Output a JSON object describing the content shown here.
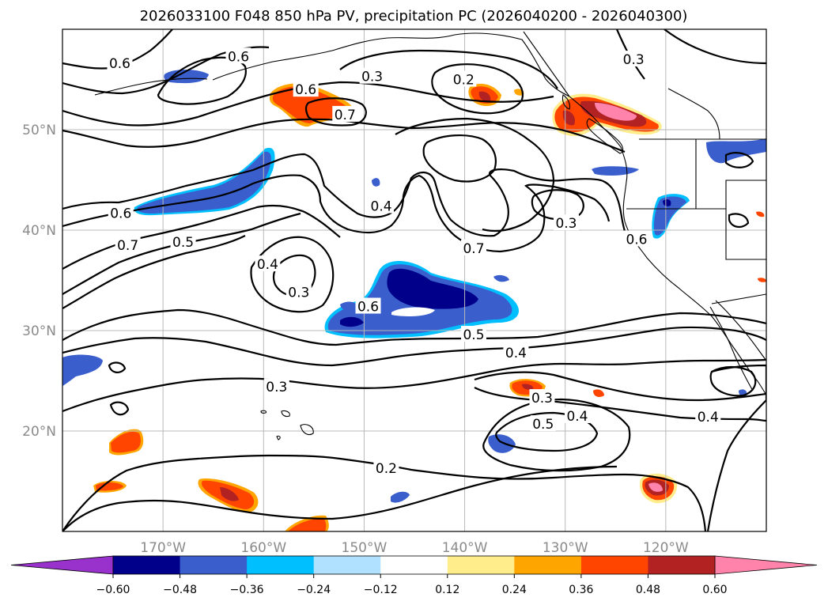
{
  "chart_data": {
    "type": "contour-map",
    "title": "2026033100 F048 850 hPa PV, precipitation PC (2026040200 - 2026040300)",
    "projection": "PlateCarree",
    "lon_range": [
      -180,
      -110
    ],
    "lat_range": [
      10,
      60
    ],
    "gridlines": true,
    "x_ticks": [
      {
        "lon": -170,
        "label": "170°W"
      },
      {
        "lon": -160,
        "label": "160°W"
      },
      {
        "lon": -150,
        "label": "150°W"
      },
      {
        "lon": -140,
        "label": "140°W"
      },
      {
        "lon": -130,
        "label": "130°W"
      },
      {
        "lon": -120,
        "label": "120°W"
      }
    ],
    "y_ticks": [
      {
        "lat": 20,
        "label": "20°N"
      },
      {
        "lat": 30,
        "label": "30°N"
      },
      {
        "lat": 40,
        "label": "40°N"
      },
      {
        "lat": 50,
        "label": "50°N"
      }
    ],
    "pv_contour_levels": [
      0.2,
      0.3,
      0.4,
      0.5,
      0.6,
      0.7
    ],
    "contour_labels": [
      {
        "text": "0.6",
        "lon": -174.2,
        "lat": 41.7
      },
      {
        "text": "0.7",
        "lon": -173.5,
        "lat": 38.5
      },
      {
        "text": "0.5",
        "lon": -168.0,
        "lat": 38.8
      },
      {
        "text": "0.4",
        "lon": -159.6,
        "lat": 36.6
      },
      {
        "text": "0.3",
        "lon": -156.5,
        "lat": 33.8
      },
      {
        "text": "0.4",
        "lon": -148.3,
        "lat": 42.4
      },
      {
        "text": "0.7",
        "lon": -139.1,
        "lat": 38.2
      },
      {
        "text": "0.3",
        "lon": -129.9,
        "lat": 40.7
      },
      {
        "text": "0.6",
        "lon": -149.6,
        "lat": 32.4
      },
      {
        "text": "0.5",
        "lon": -139.1,
        "lat": 29.6
      },
      {
        "text": "0.4",
        "lon": -134.9,
        "lat": 27.8
      },
      {
        "text": "0.3",
        "lon": -158.7,
        "lat": 24.4
      },
      {
        "text": "0.3",
        "lon": -132.3,
        "lat": 23.3
      },
      {
        "text": "0.4",
        "lon": -128.8,
        "lat": 21.5
      },
      {
        "text": "0.5",
        "lon": -132.2,
        "lat": 20.7
      },
      {
        "text": "0.4",
        "lon": -115.8,
        "lat": 21.4
      },
      {
        "text": "0.2",
        "lon": -147.8,
        "lat": 16.3
      },
      {
        "text": "0.6",
        "lon": -162.5,
        "lat": 57.3
      },
      {
        "text": "0.6",
        "lon": -155.8,
        "lat": 54.0
      },
      {
        "text": "0.7",
        "lon": -151.9,
        "lat": 51.5
      },
      {
        "text": "0.3",
        "lon": -149.2,
        "lat": 55.3
      },
      {
        "text": "0.2",
        "lon": -140.1,
        "lat": 55.0
      },
      {
        "text": "0.3",
        "lon": -123.2,
        "lat": 57.0
      },
      {
        "text": "0.6",
        "lon": -174.3,
        "lat": 56.6
      },
      {
        "text": "0.6",
        "lon": -122.9,
        "lat": 39.1
      }
    ],
    "precip_pc_regions": [
      {
        "sign": "negative",
        "peak": -0.5,
        "center": [
          -145.5,
          33.5
        ],
        "note": "large blue area NE of Hawaii"
      },
      {
        "sign": "negative",
        "peak": -0.4,
        "center": [
          -166.0,
          43.5
        ],
        "note": "band west of 160W"
      },
      {
        "sign": "negative",
        "peak": -0.3,
        "center": [
          -120.0,
          41.0
        ],
        "note": "Northern California coast"
      },
      {
        "sign": "negative",
        "peak": -0.3,
        "center": [
          -112.0,
          48.0
        ],
        "note": "interior Pacific Northwest"
      },
      {
        "sign": "positive",
        "peak": 0.6,
        "center": [
          -125.5,
          51.5
        ],
        "note": "British Columbia coast"
      },
      {
        "sign": "positive",
        "peak": 0.4,
        "center": [
          -155.5,
          53.5
        ],
        "note": "Gulf of Alaska"
      },
      {
        "sign": "positive",
        "peak": 0.4,
        "center": [
          -138.0,
          53.5
        ],
        "note": "Gulf of Alaska east"
      },
      {
        "sign": "positive",
        "peak": 0.6,
        "center": [
          -121.0,
          14.5
        ],
        "note": "tropical east Pacific"
      },
      {
        "sign": "positive",
        "peak": 0.5,
        "center": [
          -163.0,
          14.0
        ],
        "note": "west of Hawaii"
      },
      {
        "sign": "positive",
        "peak": 0.4,
        "center": [
          -134.5,
          24.5
        ],
        "note": "subtropics"
      }
    ],
    "colorbar": {
      "orientation": "horizontal",
      "extend": "both",
      "bounds": [
        -0.6,
        -0.48,
        -0.36,
        -0.24,
        -0.12,
        0.12,
        0.24,
        0.36,
        0.48,
        0.6
      ],
      "tick_labels": [
        "−0.60",
        "−0.48",
        "−0.36",
        "−0.24",
        "−0.12",
        "0.12",
        "0.24",
        "0.36",
        "0.48",
        "0.60"
      ],
      "colors": [
        "#9932cc",
        "#00008b",
        "#3a5fcd",
        "#00bfff",
        "#b0e2ff",
        "#ffffff",
        "#ffec8b",
        "#ffa500",
        "#ff4500",
        "#b22222",
        "#ff83aa"
      ]
    }
  }
}
